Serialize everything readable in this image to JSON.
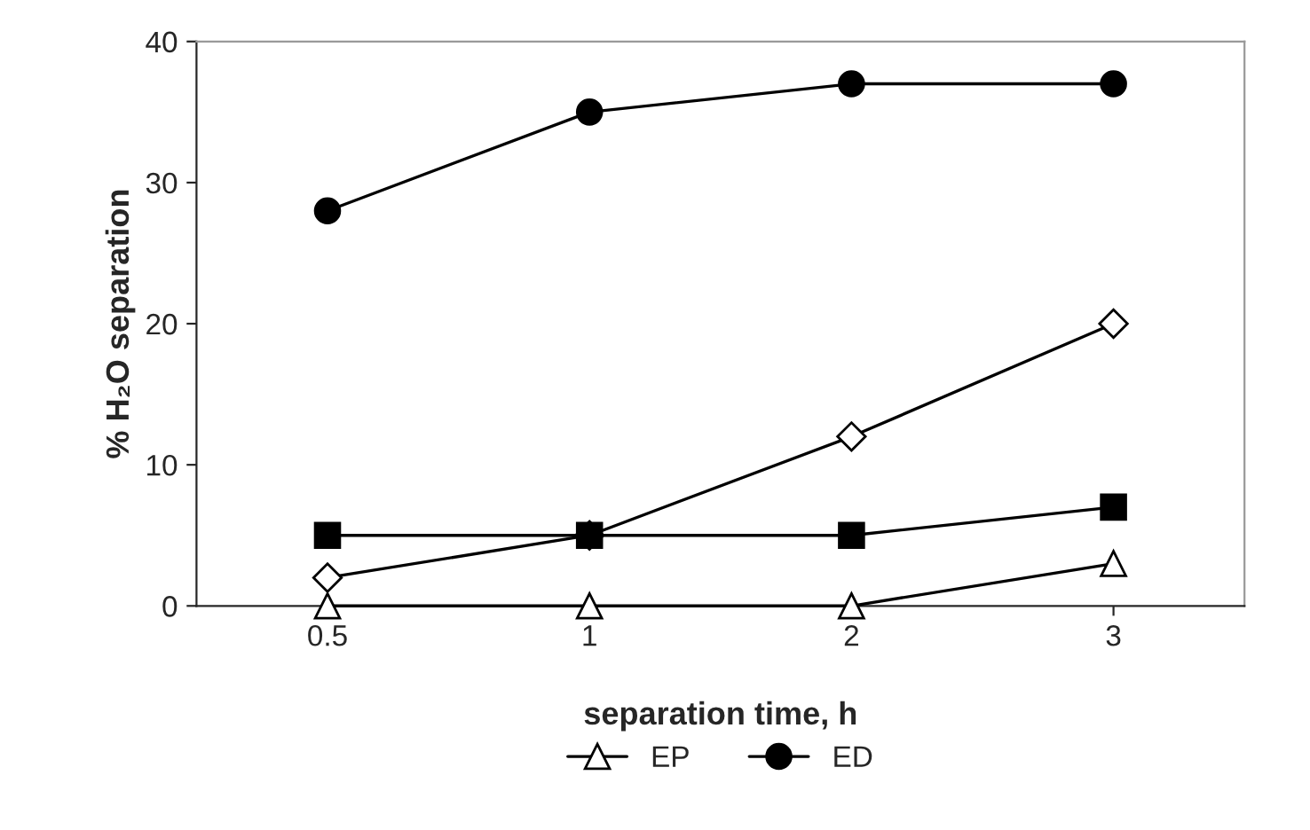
{
  "chart_data": {
    "type": "line",
    "xlabel": "separation time, h",
    "ylabel": "% H₂O separation",
    "categories": [
      "0.5",
      "1",
      "2",
      "3"
    ],
    "series": [
      {
        "color": "#000000",
        "marker": "diamond",
        "values": [
          2,
          5,
          12,
          20
        ]
      },
      {
        "color": "#000000",
        "marker": "square",
        "values": [
          5,
          5,
          5,
          7
        ]
      },
      {
        "name": "EP",
        "color": "#000000",
        "marker": "triangle",
        "values": [
          0,
          0,
          0,
          3
        ]
      },
      {
        "name": "ED",
        "color": "#000000",
        "marker": "circle",
        "values": [
          28,
          35,
          37,
          37
        ]
      }
    ],
    "ylim": [
      0,
      40
    ],
    "yticks": [
      0,
      10,
      20,
      30,
      40
    ],
    "grid": false,
    "legend": "bottom",
    "line_style": "solid"
  }
}
